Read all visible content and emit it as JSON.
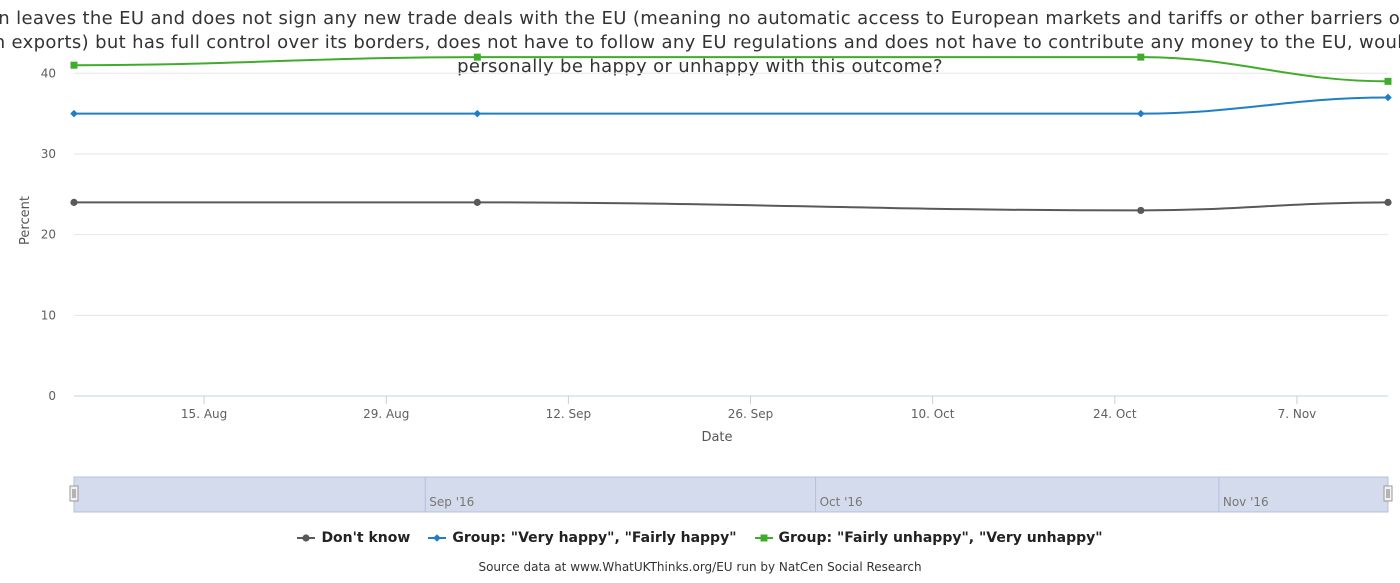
{
  "chart_data": {
    "type": "line",
    "title": "If Britain leaves the EU and does not sign any new trade deals with the EU (meaning no automatic access to European markets and tariffs or other barriers on many British exports) but has full control over its borders, does not have to follow any EU regulations and does not have to contribute any money to the EU, would you personally be happy or unhappy with this outcome?",
    "xlabel": "Date",
    "ylabel": "Percent",
    "x_range": [
      "2016-08-05",
      "2016-11-14"
    ],
    "x_ticks": [
      "15. Aug",
      "29. Aug",
      "12. Sep",
      "26. Sep",
      "10. Oct",
      "24. Oct",
      "7. Nov"
    ],
    "y_ticks": [
      0,
      10,
      20,
      30,
      40
    ],
    "ylim": [
      0,
      44
    ],
    "grid": true,
    "legend_position": "bottom",
    "series": [
      {
        "name": "Don't know",
        "color": "#595959",
        "marker": "circle",
        "x": [
          "2016-08-05",
          "2016-09-05",
          "2016-10-26",
          "2016-11-14"
        ],
        "values": [
          24,
          24,
          23,
          24
        ]
      },
      {
        "name": "Group: \"Very happy\", \"Fairly happy\"",
        "color": "#1f7fc4",
        "marker": "diamond",
        "x": [
          "2016-08-05",
          "2016-09-05",
          "2016-10-26",
          "2016-11-14"
        ],
        "values": [
          35,
          35,
          35,
          37
        ]
      },
      {
        "name": "Group: \"Fairly unhappy\", \"Very unhappy\"",
        "color": "#3fad2b",
        "marker": "square",
        "x": [
          "2016-08-05",
          "2016-09-05",
          "2016-10-26",
          "2016-11-14"
        ],
        "values": [
          41,
          42,
          42,
          39
        ]
      }
    ]
  },
  "navigator": {
    "labels": [
      "Sep '16",
      "Oct '16",
      "Nov '16"
    ],
    "label_dates": [
      "2016-09-01",
      "2016-10-01",
      "2016-11-01"
    ],
    "handle_glyph": "||"
  },
  "source": "Source data at www.WhatUKThinks.org/EU run by NatCen Social Research"
}
